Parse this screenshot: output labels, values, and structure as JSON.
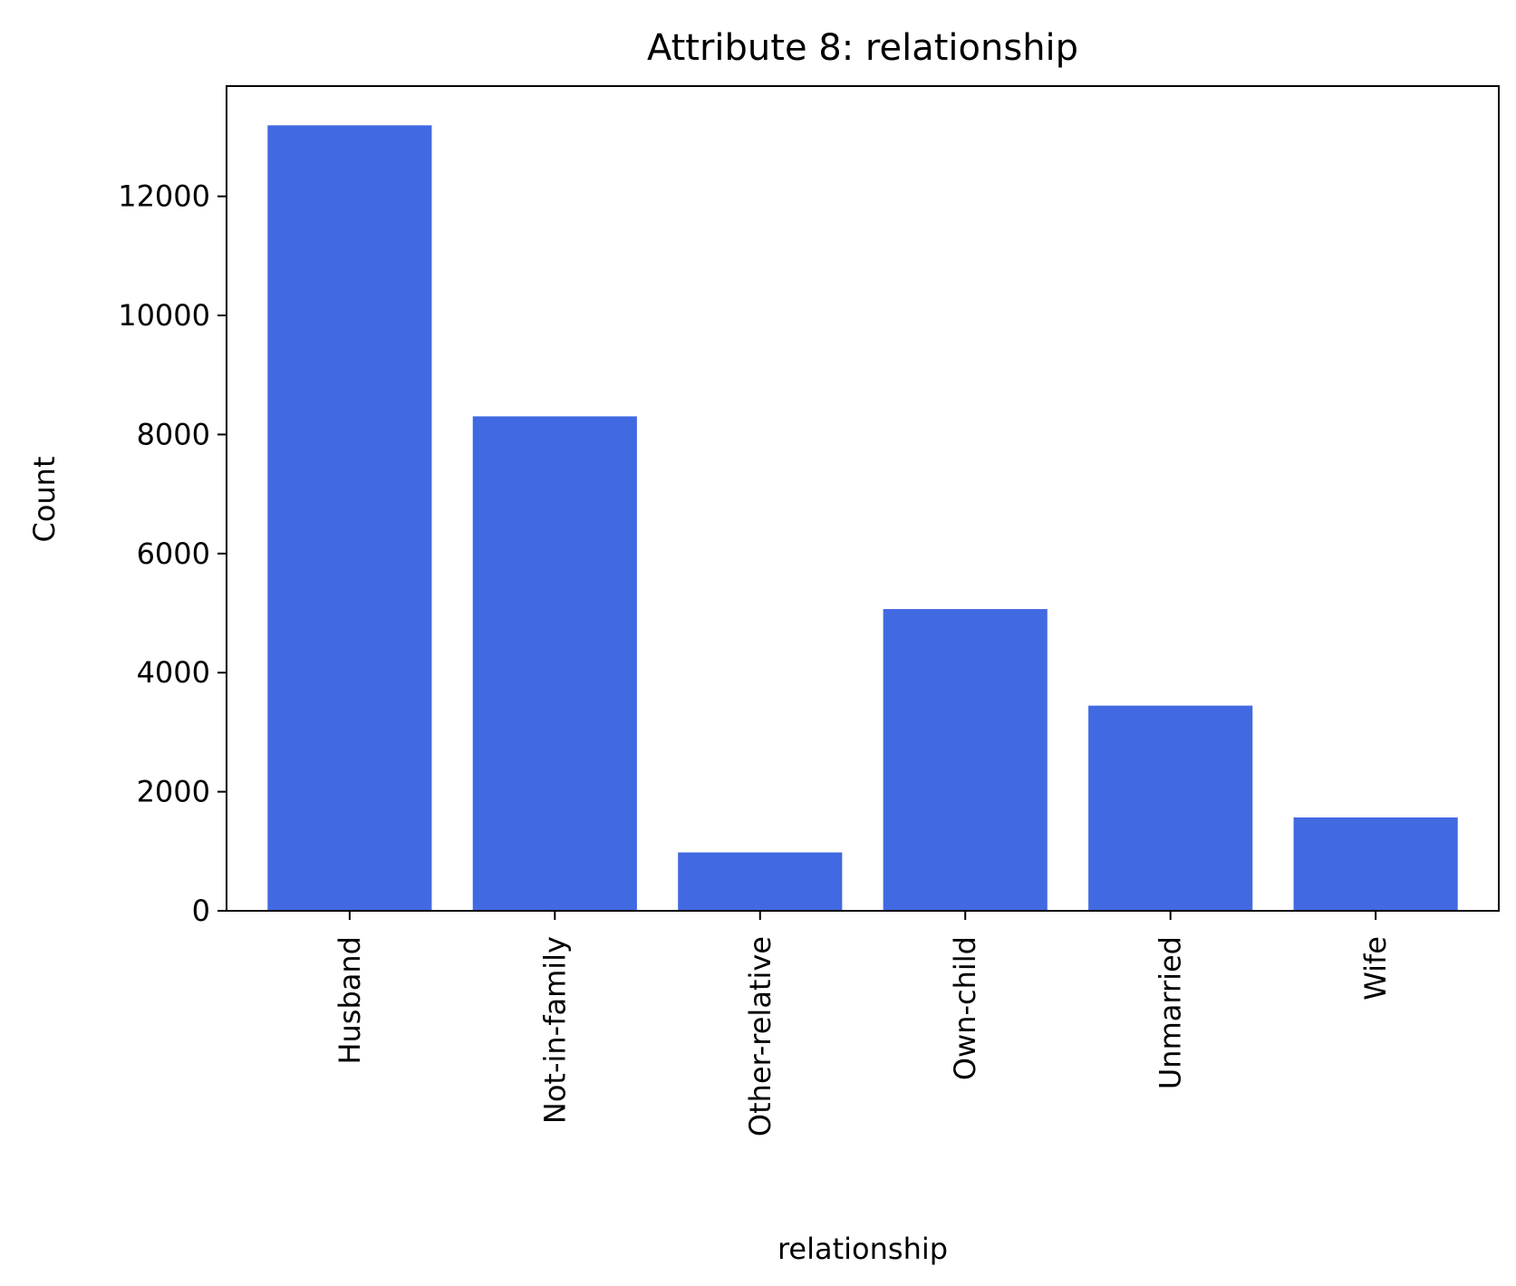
{
  "chart_data": {
    "type": "bar",
    "title": "Attribute 8: relationship",
    "xlabel": "relationship",
    "ylabel": "Count",
    "categories": [
      "Husband",
      "Not-in-family",
      "Other-relative",
      "Own-child",
      "Unmarried",
      "Wife"
    ],
    "values": [
      13193,
      8305,
      981,
      5068,
      3446,
      1568
    ],
    "ylim": [
      0,
      13852
    ],
    "yticks": [
      0,
      2000,
      4000,
      6000,
      8000,
      10000,
      12000
    ],
    "bar_color": "#4169E1",
    "grid": false,
    "legend": "none"
  }
}
